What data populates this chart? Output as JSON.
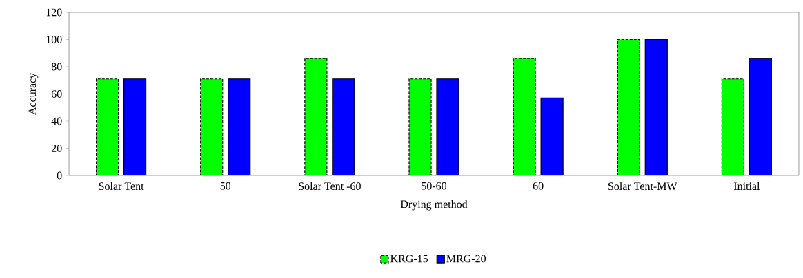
{
  "chart_data": {
    "type": "bar",
    "xlabel": "Drying method",
    "ylabel": "Accuracy",
    "categories": [
      "Solar Tent",
      "50",
      "Solar Tent -60",
      "50-60",
      "60",
      "Solar Tent-MW",
      "Initial"
    ],
    "series": [
      {
        "name": "KRG-15",
        "color": "#00ff00",
        "line_style": "dashed",
        "values": [
          71,
          71,
          86,
          71,
          86,
          100,
          71
        ]
      },
      {
        "name": "MRG-20",
        "color": "#0000ff",
        "line_style": "solid",
        "values": [
          71,
          71,
          71,
          71,
          57,
          100,
          86
        ]
      }
    ],
    "ylim": [
      0,
      120
    ],
    "yticks": [
      0,
      20,
      40,
      60,
      80,
      100,
      120
    ],
    "grid": false,
    "legend": "bottom"
  }
}
